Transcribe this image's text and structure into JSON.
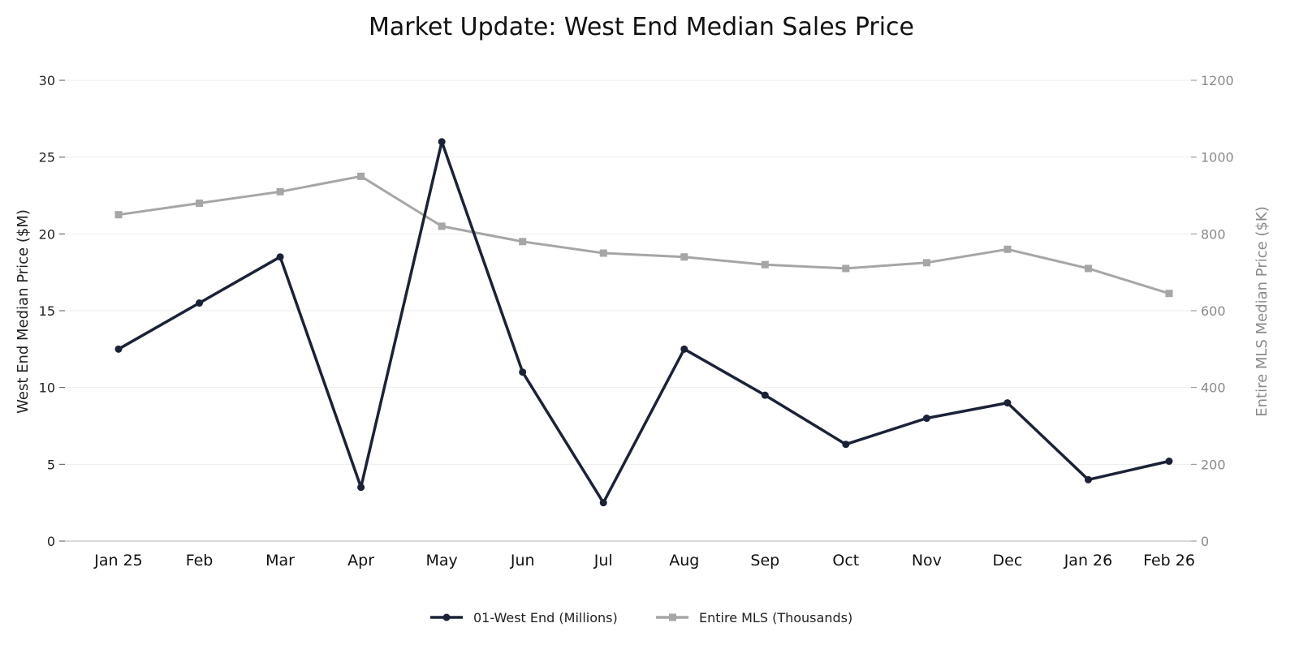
{
  "chart_data": {
    "type": "line",
    "title": "Market Update: West End Median Sales Price",
    "categories": [
      "Jan 25",
      "Feb",
      "Mar",
      "Apr",
      "May",
      "Jun",
      "Jul",
      "Aug",
      "Sep",
      "Oct",
      "Nov",
      "Dec",
      "Jan 26",
      "Feb 26"
    ],
    "y_left": {
      "label": "West End Median Price ($M)",
      "range": [
        0,
        30
      ],
      "ticks": [
        0,
        5,
        10,
        15,
        20,
        25,
        30
      ]
    },
    "y_right": {
      "label": "Entire MLS Median Price ($K)",
      "range": [
        0,
        1200
      ],
      "ticks": [
        0,
        200,
        400,
        600,
        800,
        1000,
        1200
      ]
    },
    "series": [
      {
        "name": "01-West End (Millions)",
        "axis": "left",
        "color": "#1b2238",
        "marker": "circle",
        "values": [
          12.5,
          15.5,
          18.5,
          3.5,
          26.0,
          11.0,
          2.5,
          12.5,
          9.5,
          6.3,
          8.0,
          9.0,
          4.0,
          5.2
        ]
      },
      {
        "name": "Entire MLS (Thousands)",
        "axis": "right",
        "color": "#a6a6a6",
        "marker": "square",
        "values": [
          850,
          880,
          910,
          950,
          820,
          780,
          750,
          740,
          720,
          710,
          725,
          760,
          710,
          645
        ]
      }
    ],
    "grid": true,
    "legend": "bottom-center"
  }
}
